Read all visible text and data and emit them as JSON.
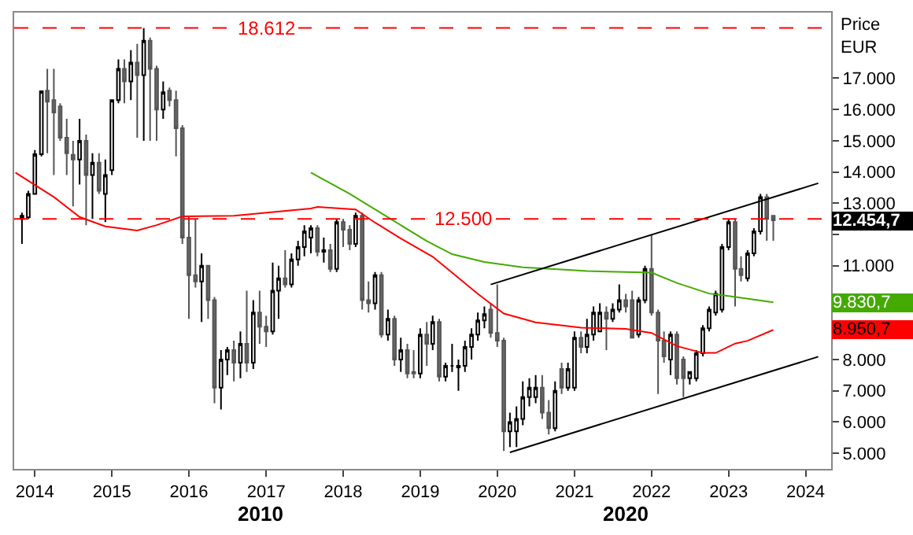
{
  "chart_data": {
    "type": "candlestick",
    "ylabel": "Price EUR",
    "x": [
      "2013-11",
      "2013-12",
      "2014-01",
      "2014-02",
      "2014-03",
      "2014-04",
      "2014-05",
      "2014-06",
      "2014-07",
      "2014-08",
      "2014-09",
      "2014-10",
      "2014-11",
      "2014-12",
      "2015-01",
      "2015-02",
      "2015-03",
      "2015-04",
      "2015-05",
      "2015-06",
      "2015-07",
      "2015-08",
      "2015-09",
      "2015-10",
      "2015-11",
      "2015-12",
      "2016-01",
      "2016-02",
      "2016-03",
      "2016-04",
      "2016-05",
      "2016-06",
      "2016-07",
      "2016-08",
      "2016-09",
      "2016-10",
      "2016-11",
      "2016-12",
      "2017-01",
      "2017-02",
      "2017-03",
      "2017-04",
      "2017-05",
      "2017-06",
      "2017-07",
      "2017-08",
      "2017-09",
      "2017-10",
      "2017-11",
      "2017-12",
      "2018-01",
      "2018-02",
      "2018-03",
      "2018-04",
      "2018-05",
      "2018-06",
      "2018-07",
      "2018-08",
      "2018-09",
      "2018-10",
      "2018-11",
      "2018-12",
      "2019-01",
      "2019-02",
      "2019-03",
      "2019-04",
      "2019-05",
      "2019-06",
      "2019-07",
      "2019-08",
      "2019-09",
      "2019-10",
      "2019-11",
      "2019-12",
      "2020-01",
      "2020-02",
      "2020-03",
      "2020-04",
      "2020-05",
      "2020-06",
      "2020-07",
      "2020-08",
      "2020-09",
      "2020-10",
      "2020-11",
      "2020-12",
      "2021-01",
      "2021-02",
      "2021-03",
      "2021-04",
      "2021-05",
      "2021-06",
      "2021-07",
      "2021-08",
      "2021-09",
      "2021-10",
      "2021-11",
      "2021-12",
      "2022-01",
      "2022-02",
      "2022-03",
      "2022-04",
      "2022-05",
      "2022-06",
      "2022-07",
      "2022-08",
      "2022-09",
      "2022-10",
      "2022-11",
      "2022-12",
      "2023-01",
      "2023-02",
      "2023-03",
      "2023-04",
      "2023-05",
      "2023-06",
      "2023-07",
      "2023-08"
    ],
    "ohlc": [
      [
        12500,
        12700,
        11700,
        12600
      ],
      [
        12550,
        13400,
        12500,
        13300
      ],
      [
        13300,
        14700,
        13300,
        14570
      ],
      [
        14570,
        16600,
        14500,
        16580
      ],
      [
        16600,
        17300,
        14600,
        16250
      ],
      [
        16300,
        17300,
        13900,
        15900
      ],
      [
        16100,
        16200,
        15000,
        15100
      ],
      [
        15100,
        15700,
        13900,
        14600
      ],
      [
        14550,
        15000,
        12900,
        14400
      ],
      [
        14400,
        15700,
        13600,
        15000
      ],
      [
        15000,
        15200,
        12300,
        13900
      ],
      [
        13900,
        14600,
        12500,
        14300
      ],
      [
        14300,
        14600,
        13300,
        13400
      ],
      [
        13300,
        14400,
        12400,
        13900
      ],
      [
        14060,
        16300,
        13900,
        16300
      ],
      [
        16300,
        17600,
        16200,
        17300
      ],
      [
        17300,
        17600,
        16200,
        16900
      ],
      [
        16900,
        17900,
        16300,
        17500
      ],
      [
        17500,
        18100,
        15100,
        17100
      ],
      [
        17100,
        18600,
        15000,
        18200
      ],
      [
        18200,
        18300,
        15000,
        17300
      ],
      [
        17300,
        17400,
        15000,
        16000
      ],
      [
        16000,
        16900,
        15700,
        16550
      ],
      [
        16600,
        16700,
        16100,
        16300
      ],
      [
        16300,
        16600,
        14500,
        15400
      ],
      [
        15400,
        15500,
        11700,
        11900
      ],
      [
        11900,
        12560,
        9300,
        10700
      ],
      [
        10700,
        12500,
        10300,
        10500
      ],
      [
        10500,
        11400,
        9200,
        11000
      ],
      [
        11000,
        11000,
        9300,
        9900
      ],
      [
        9900,
        10000,
        6600,
        7100
      ],
      [
        7100,
        8300,
        6400,
        8000
      ],
      [
        8000,
        8400,
        7500,
        8300
      ],
      [
        8300,
        8600,
        7300,
        7900
      ],
      [
        7900,
        8900,
        7400,
        8500
      ],
      [
        8500,
        10200,
        7600,
        7900
      ],
      [
        7900,
        9900,
        7700,
        9500
      ],
      [
        9500,
        10200,
        8500,
        9050
      ],
      [
        9050,
        9400,
        8400,
        8900
      ],
      [
        8900,
        11100,
        8800,
        10200
      ],
      [
        10200,
        11000,
        9300,
        10600
      ],
      [
        10600,
        11500,
        10300,
        10400
      ],
      [
        10400,
        11400,
        10300,
        11200
      ],
      [
        11200,
        11800,
        11000,
        11600
      ],
      [
        11600,
        12300,
        11300,
        12100
      ],
      [
        11900,
        12300,
        11400,
        12200
      ],
      [
        12200,
        12300,
        11300,
        11450
      ],
      [
        11450,
        11900,
        11100,
        11500
      ],
      [
        11500,
        11700,
        10800,
        10900
      ],
      [
        10900,
        12500,
        10800,
        12400
      ],
      [
        12400,
        12500,
        11600,
        12150
      ],
      [
        12150,
        12300,
        11500,
        11700
      ],
      [
        11700,
        12700,
        11600,
        12600
      ],
      [
        12600,
        12700,
        9600,
        9900
      ],
      [
        9900,
        10500,
        9500,
        9800
      ],
      [
        9800,
        10800,
        9600,
        10700
      ],
      [
        10700,
        10800,
        8700,
        8800
      ],
      [
        8800,
        9600,
        8600,
        9300
      ],
      [
        9300,
        9400,
        7800,
        8000
      ],
      [
        8000,
        8700,
        7600,
        8300
      ],
      [
        8300,
        8500,
        7400,
        7550
      ],
      [
        7600,
        8300,
        7400,
        7550
      ],
      [
        7550,
        9000,
        7400,
        8800
      ],
      [
        8800,
        9200,
        7800,
        8500
      ],
      [
        8500,
        9400,
        8300,
        9200
      ],
      [
        9200,
        9300,
        7300,
        7450
      ],
      [
        7450,
        7900,
        7300,
        7800
      ],
      [
        7800,
        8500,
        7600,
        7800
      ],
      [
        7750,
        8000,
        7000,
        7800
      ],
      [
        7800,
        8600,
        7600,
        8400
      ],
      [
        8400,
        9000,
        8000,
        8800
      ],
      [
        8800,
        9500,
        8600,
        9250
      ],
      [
        9250,
        9700,
        9000,
        9450
      ],
      [
        9600,
        9800,
        8700,
        8850
      ],
      [
        8850,
        10400,
        8400,
        8600
      ],
      [
        8600,
        8700,
        5070,
        5700
      ],
      [
        5700,
        6300,
        5200,
        6000
      ],
      [
        5700,
        6500,
        5200,
        6100
      ],
      [
        6100,
        7300,
        5900,
        6800
      ],
      [
        6800,
        7400,
        6500,
        7100
      ],
      [
        6800,
        7500,
        6600,
        7100
      ],
      [
        7100,
        7500,
        6100,
        6300
      ],
      [
        6300,
        6700,
        5600,
        5800
      ],
      [
        5800,
        7300,
        5700,
        7000
      ],
      [
        7700,
        7900,
        6900,
        7100
      ],
      [
        7100,
        7900,
        7000,
        7700
      ],
      [
        7100,
        8900,
        7000,
        8700
      ],
      [
        8700,
        8900,
        8200,
        8400
      ],
      [
        8400,
        9300,
        8200,
        8800
      ],
      [
        8800,
        9700,
        8600,
        9500
      ],
      [
        8900,
        9800,
        8900,
        9500
      ],
      [
        9500,
        9700,
        8300,
        9300
      ],
      [
        9300,
        9800,
        9200,
        9600
      ],
      [
        9600,
        10400,
        9500,
        9900
      ],
      [
        9900,
        10100,
        9500,
        9700
      ],
      [
        9900,
        10200,
        8700,
        8700
      ],
      [
        8800,
        10000,
        8700,
        9900
      ],
      [
        9900,
        11000,
        9800,
        10900
      ],
      [
        10900,
        12000,
        9400,
        9500
      ],
      [
        9500,
        9600,
        6900,
        8600
      ],
      [
        8600,
        8900,
        7900,
        8100
      ],
      [
        8000,
        8900,
        7500,
        8800
      ],
      [
        8800,
        8900,
        7200,
        7400
      ],
      [
        8000,
        8100,
        6800,
        7400
      ],
      [
        7400,
        7600,
        7200,
        7600
      ],
      [
        7400,
        8300,
        7300,
        8200
      ],
      [
        8200,
        9100,
        8100,
        9000
      ],
      [
        9000,
        9700,
        8900,
        9600
      ],
      [
        9500,
        10200,
        9400,
        10100
      ],
      [
        9600,
        11700,
        9500,
        11600
      ],
      [
        11600,
        12500,
        11500,
        12400
      ],
      [
        12400,
        12500,
        9700,
        10900
      ],
      [
        10900,
        11300,
        10500,
        10700
      ],
      [
        10600,
        11500,
        10500,
        11400
      ],
      [
        11400,
        12200,
        11300,
        12100
      ],
      [
        12100,
        13300,
        12000,
        13200
      ],
      [
        13200,
        13300,
        11800,
        12500
      ],
      [
        12600,
        12600,
        11800,
        12454.7
      ]
    ],
    "series": [
      {
        "type": "line",
        "color": "#44aa00",
        "x": [
          "2017-08",
          "2018-02",
          "2018-08",
          "2019-02",
          "2019-06",
          "2019-11",
          "2020-05",
          "2020-12",
          "2021-03",
          "2022-01",
          "2022-05",
          "2022-10",
          "2023-01",
          "2023-08"
        ],
        "values": [
          13980,
          13300,
          12550,
          11790,
          11370,
          11120,
          10950,
          10870,
          10830,
          10780,
          10450,
          10110,
          10030,
          9830
        ]
      },
      {
        "type": "line",
        "color": "#ff0000",
        "x": [
          "2013-10",
          "2014-04",
          "2014-08",
          "2014-12",
          "2015-05",
          "2015-08",
          "2015-12",
          "2016-08",
          "2017-08",
          "2017-09",
          "2018-03",
          "2018-06",
          "2018-10",
          "2019-03",
          "2019-06",
          "2019-10",
          "2020-02",
          "2020-07",
          "2020-12",
          "2021-02",
          "2021-09",
          "2022-01",
          "2022-05",
          "2022-09",
          "2022-11",
          "2023-02",
          "2023-04",
          "2023-08"
        ],
        "values": [
          13980,
          13200,
          12560,
          12260,
          12130,
          12300,
          12580,
          12600,
          12830,
          12880,
          12800,
          12380,
          11870,
          11290,
          10780,
          10100,
          9470,
          9190,
          9070,
          9020,
          8980,
          8850,
          8430,
          8210,
          8210,
          8510,
          8600,
          8950
        ]
      },
      {
        "type": "line",
        "color": "#000000",
        "x": [
          "2019-12",
          "2024-03"
        ],
        "values": [
          10400,
          13640
        ]
      },
      {
        "type": "line",
        "color": "#000000",
        "x": [
          "2020-03",
          "2024-03"
        ],
        "values": [
          5030,
          8090
        ]
      }
    ],
    "xlim": [
      "2013-09-25",
      "2024-05-01"
    ],
    "xticks": [
      "2014",
      "2015",
      "2016",
      "2017",
      "2018",
      "2019",
      "2020",
      "2021",
      "2022",
      "2023",
      "2024"
    ],
    "ylim": [
      4500,
      19100
    ],
    "yticks": [
      {
        "value": 5000,
        "label": "5.000"
      },
      {
        "value": 6000,
        "label": "6.000"
      },
      {
        "value": 7000,
        "label": "7.000"
      },
      {
        "value": 8000,
        "label": "8.000"
      },
      {
        "value": 9000,
        "label": null
      },
      {
        "value": 10000,
        "label": null
      },
      {
        "value": 11000,
        "label": "11.000"
      },
      {
        "value": 12000,
        "label": null
      },
      {
        "value": 13000,
        "label": "13.000"
      },
      {
        "value": 14000,
        "label": "14.000"
      },
      {
        "value": 15000,
        "label": "15.000"
      },
      {
        "value": 16000,
        "label": "16.000"
      },
      {
        "value": 17000,
        "label": "17.000"
      }
    ],
    "ref_lines": [
      {
        "axis": "y",
        "value": 18612,
        "label": "18.612",
        "color": "#ff0000",
        "line_style": "dashed"
      },
      {
        "axis": "y",
        "value": 12500,
        "label": "12.500",
        "color": "#ff0000",
        "line_style": "dashed"
      }
    ],
    "annotations": [
      "12.454,7",
      "9.830,7",
      "8.950,7",
      "2010",
      "2020"
    ]
  }
}
